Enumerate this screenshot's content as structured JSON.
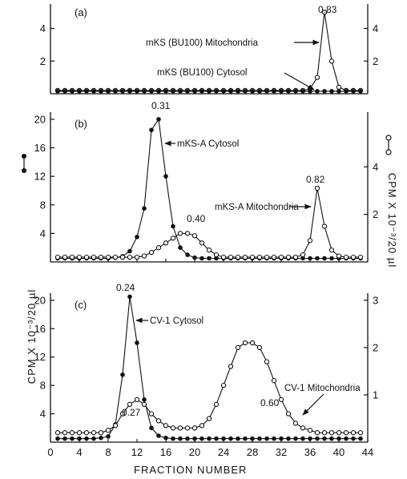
{
  "x_axis": {
    "label": "FRACTION NUMBER",
    "ticks": [
      0,
      4,
      8,
      12,
      16,
      20,
      24,
      28,
      32,
      36,
      40,
      44
    ]
  },
  "y_axis": {
    "left_label": "CPM X 10⁻³/20 µl",
    "right_label": "CPM X 10⁻³/20 µl"
  },
  "style": {
    "ink": "#111111",
    "background": "#ffffff"
  },
  "chart_data": [
    {
      "type": "line",
      "panel": "(a)",
      "x_range": [
        0,
        44
      ],
      "left_axis": {
        "range": [
          0,
          5.5
        ],
        "ticks": [
          2,
          4
        ]
      },
      "right_axis": {
        "range": [
          0,
          5.5
        ],
        "ticks": [
          2,
          4
        ]
      },
      "series": [
        {
          "name": "mKS (BU100) Mitochondria",
          "marker": "open-circle",
          "axis": "right",
          "x": [
            1,
            2,
            3,
            4,
            5,
            6,
            7,
            8,
            9,
            10,
            11,
            12,
            13,
            14,
            15,
            16,
            17,
            18,
            19,
            20,
            21,
            22,
            23,
            24,
            25,
            26,
            27,
            28,
            29,
            30,
            31,
            32,
            33,
            34,
            35,
            36,
            37,
            38,
            39,
            40,
            41,
            42,
            43
          ],
          "y": [
            0.2,
            0.2,
            0.2,
            0.2,
            0.2,
            0.2,
            0.2,
            0.2,
            0.2,
            0.2,
            0.2,
            0.2,
            0.2,
            0.2,
            0.2,
            0.2,
            0.2,
            0.2,
            0.2,
            0.2,
            0.2,
            0.2,
            0.2,
            0.2,
            0.2,
            0.2,
            0.2,
            0.2,
            0.2,
            0.2,
            0.2,
            0.2,
            0.2,
            0.2,
            0.2,
            0.3,
            1.0,
            5.0,
            2.0,
            0.4,
            0.2,
            0.2,
            0.2
          ]
        },
        {
          "name": "mKS (BU100) Cytosol",
          "marker": "filled-circle",
          "axis": "left",
          "x": [
            1,
            2,
            3,
            4,
            5,
            6,
            7,
            8,
            9,
            10,
            11,
            12,
            13,
            14,
            15,
            16,
            17,
            18,
            19,
            20,
            21,
            22,
            23,
            24,
            25,
            26,
            27,
            28,
            29,
            30,
            31,
            32,
            33,
            34,
            35,
            36,
            37,
            38,
            39,
            40,
            41,
            42,
            43
          ],
          "y": [
            0.15,
            0.15,
            0.15,
            0.15,
            0.15,
            0.15,
            0.15,
            0.15,
            0.15,
            0.15,
            0.15,
            0.15,
            0.15,
            0.15,
            0.15,
            0.15,
            0.15,
            0.15,
            0.15,
            0.15,
            0.15,
            0.15,
            0.15,
            0.15,
            0.15,
            0.15,
            0.15,
            0.15,
            0.15,
            0.15,
            0.15,
            0.15,
            0.15,
            0.15,
            0.15,
            0.15,
            0.15,
            0.15,
            0.15,
            0.15,
            0.15,
            0.15,
            0.15
          ]
        }
      ],
      "annotations": [
        "0.83",
        "mKS (BU100) Mitochondria",
        "mKS (BU100) Cytosol"
      ]
    },
    {
      "type": "line",
      "panel": "(b)",
      "x_range": [
        0,
        44
      ],
      "left_axis": {
        "range": [
          0,
          21
        ],
        "ticks": [
          4,
          8,
          12,
          16,
          20
        ]
      },
      "right_axis": {
        "range": [
          0,
          6.3
        ],
        "ticks": [
          2,
          4
        ]
      },
      "series": [
        {
          "name": "mKS-A Cytosol",
          "marker": "filled-circle",
          "axis": "left",
          "x": [
            1,
            2,
            3,
            4,
            5,
            6,
            7,
            8,
            9,
            10,
            11,
            12,
            13,
            14,
            15,
            16,
            17,
            18,
            19,
            20,
            21,
            22,
            23,
            24,
            25,
            26,
            27,
            28,
            29,
            30,
            31,
            32,
            33,
            34,
            35,
            36,
            37,
            38,
            39,
            40,
            41,
            42,
            43
          ],
          "y": [
            0.5,
            0.5,
            0.5,
            0.5,
            0.5,
            0.5,
            0.5,
            0.5,
            0.6,
            0.8,
            1.5,
            3.5,
            7.5,
            18.5,
            20.0,
            12.0,
            5.0,
            2.0,
            1.0,
            0.6,
            0.5,
            0.5,
            0.5,
            0.5,
            0.5,
            0.5,
            0.5,
            0.5,
            0.5,
            0.5,
            0.5,
            0.5,
            0.5,
            0.5,
            0.5,
            0.5,
            0.5,
            0.5,
            0.5,
            0.5,
            0.5,
            0.5,
            0.5
          ]
        },
        {
          "name": "mKS-A Mitochondria",
          "marker": "open-circle",
          "axis": "right",
          "x": [
            1,
            2,
            3,
            4,
            5,
            6,
            7,
            8,
            9,
            10,
            11,
            12,
            13,
            14,
            15,
            16,
            17,
            18,
            19,
            20,
            21,
            22,
            23,
            24,
            25,
            26,
            27,
            28,
            29,
            30,
            31,
            32,
            33,
            34,
            35,
            36,
            37,
            38,
            39,
            40,
            41,
            42,
            43
          ],
          "y": [
            0.2,
            0.2,
            0.2,
            0.2,
            0.2,
            0.2,
            0.2,
            0.2,
            0.2,
            0.2,
            0.2,
            0.2,
            0.25,
            0.4,
            0.6,
            0.8,
            1.0,
            1.2,
            1.2,
            1.1,
            0.8,
            0.5,
            0.3,
            0.2,
            0.2,
            0.2,
            0.2,
            0.2,
            0.2,
            0.2,
            0.2,
            0.2,
            0.2,
            0.2,
            0.3,
            0.9,
            3.1,
            1.5,
            0.5,
            0.25,
            0.2,
            0.2,
            0.2
          ]
        }
      ],
      "annotations": [
        "0.31",
        "0.40",
        "0.82",
        "mKS-A Cytosol",
        "mKS-A Mitochondria"
      ]
    },
    {
      "type": "line",
      "panel": "(c)",
      "x_range": [
        0,
        44
      ],
      "left_axis": {
        "range": [
          0,
          21
        ],
        "ticks": [
          4,
          8,
          12,
          16,
          20
        ]
      },
      "right_axis": {
        "range": [
          0,
          3.15
        ],
        "ticks": [
          1,
          2,
          3
        ]
      },
      "series": [
        {
          "name": "CV-1 Cytosol",
          "marker": "filled-circle",
          "axis": "left",
          "x": [
            1,
            2,
            3,
            4,
            5,
            6,
            7,
            8,
            9,
            10,
            11,
            12,
            13,
            14,
            15,
            16,
            17,
            18,
            19,
            20,
            21,
            22,
            23,
            24,
            25,
            26,
            27,
            28,
            29,
            30,
            31,
            32,
            33,
            34,
            35,
            36,
            37,
            38,
            39,
            40,
            41,
            42,
            43
          ],
          "y": [
            0.5,
            0.5,
            0.5,
            0.5,
            0.5,
            0.5,
            0.6,
            0.8,
            2.5,
            9.5,
            20.5,
            14.0,
            6.0,
            2.0,
            0.9,
            0.6,
            0.5,
            0.5,
            0.5,
            0.5,
            0.5,
            0.5,
            0.5,
            0.5,
            0.5,
            0.5,
            0.5,
            0.5,
            0.5,
            0.5,
            0.5,
            0.5,
            0.5,
            0.5,
            0.5,
            0.5,
            0.5,
            0.5,
            0.5,
            0.5,
            0.5,
            0.5,
            0.5
          ]
        },
        {
          "name": "CV-1 Mitochondria",
          "marker": "open-circle",
          "axis": "right",
          "x": [
            1,
            2,
            3,
            4,
            5,
            6,
            7,
            8,
            9,
            10,
            11,
            12,
            13,
            14,
            15,
            16,
            17,
            18,
            19,
            20,
            21,
            22,
            23,
            24,
            25,
            26,
            27,
            28,
            29,
            30,
            31,
            32,
            33,
            34,
            35,
            36,
            37,
            38,
            39,
            40,
            41,
            42,
            43
          ],
          "y": [
            0.2,
            0.2,
            0.2,
            0.2,
            0.2,
            0.2,
            0.2,
            0.25,
            0.35,
            0.6,
            0.8,
            0.9,
            0.8,
            0.6,
            0.45,
            0.35,
            0.3,
            0.3,
            0.3,
            0.3,
            0.35,
            0.5,
            0.8,
            1.2,
            1.6,
            2.0,
            2.1,
            2.1,
            2.0,
            1.7,
            1.3,
            0.9,
            0.6,
            0.4,
            0.3,
            0.25,
            0.2,
            0.2,
            0.2,
            0.2,
            0.2,
            0.2,
            0.2
          ]
        }
      ],
      "annotations": [
        "0.24",
        "0.27",
        "0.60",
        "CV-1 Cytosol",
        "CV-1 Mitochondria"
      ]
    }
  ]
}
